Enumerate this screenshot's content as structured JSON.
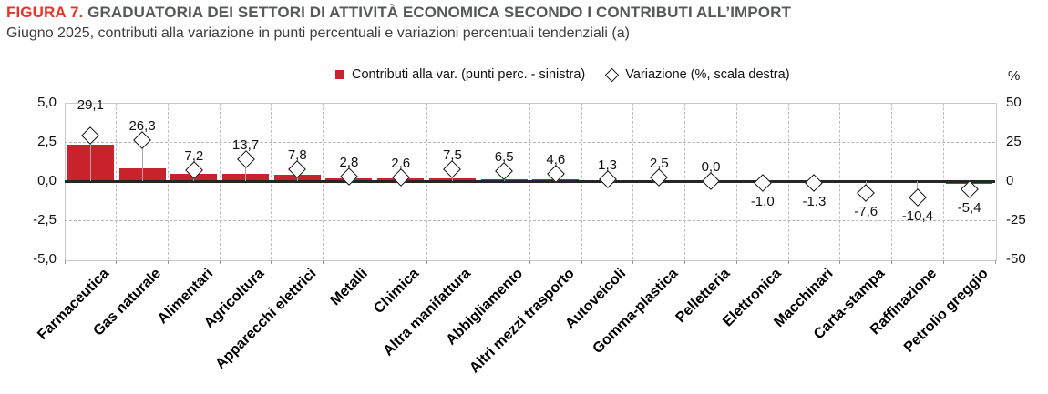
{
  "header": {
    "figure_label": "FIGURA 7.",
    "title": "GRADUATORIA DEI SETTORI DI ATTIVITÀ ECONOMICA SECONDO I CONTRIBUTI ALL’IMPORT",
    "subtitle": "Giugno 2025, contributi alla variazione in punti percentuali e variazioni percentuali tendenziali (a)"
  },
  "legend": {
    "bars_label": "Contributi alla var. (punti perc. - sinistra)",
    "variation_label": "Variazione (%, scala destra)"
  },
  "chart_data": {
    "type": "bar",
    "subtype": "combo bar + diamond scatter, dual axis",
    "categories": [
      "Farmaceutica",
      "Gas naturale",
      "Alimentari",
      "Agricoltura",
      "Apparecchi elettrici",
      "Metalli",
      "Chimica",
      "Altra manifattura",
      "Abbigliamento",
      "Altri mezzi trasporto",
      "Autoveicoli",
      "Gomma-plastica",
      "Pelletteria",
      "Elettronica",
      "Macchinari",
      "Carta-stampa",
      "Raffinazione",
      "Petrolio greggio"
    ],
    "series": [
      {
        "name": "Contributi alla var. (punti perc. - sinistra)",
        "type": "bar",
        "axis": "left",
        "values": [
          2.3,
          0.8,
          0.45,
          0.45,
          0.4,
          0.2,
          0.18,
          0.15,
          0.12,
          0.12,
          0.06,
          0.05,
          0.0,
          -0.03,
          -0.05,
          -0.1,
          -0.1,
          -0.16
        ]
      },
      {
        "name": "Variazione (%, scala destra)",
        "type": "scatter",
        "marker": "diamond",
        "axis": "right",
        "values": [
          29.1,
          26.3,
          7.2,
          13.7,
          7.8,
          2.8,
          2.6,
          7.5,
          6.5,
          4.6,
          1.3,
          2.5,
          0.0,
          -1.0,
          -1.3,
          -7.6,
          -10.4,
          -5.4
        ]
      }
    ],
    "left_axis": {
      "ticks": [
        "5,0",
        "2,5",
        "0,0",
        "-2,5",
        "-5,0"
      ],
      "range": [
        -5,
        5
      ]
    },
    "right_axis": {
      "ticks": [
        "50",
        "25",
        "0",
        "-25",
        "-50"
      ],
      "range": [
        -50,
        50
      ],
      "unit": "%"
    },
    "grid": "horizontal dashed at ±2.5, vertical dashed per category",
    "legend_position": "top-center",
    "data_labels": "variation values shown above/below diamonds, comma decimal"
  },
  "colors": {
    "bar": "#c8232c",
    "figure_label": "#e8332a",
    "title": "#57585a",
    "zero_line": "#262626",
    "grid": "#b3b3b3"
  }
}
